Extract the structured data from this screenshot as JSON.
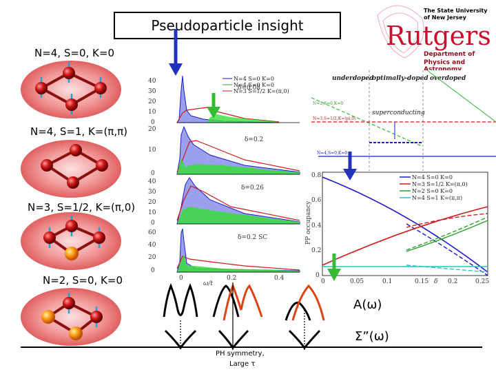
{
  "slide": {
    "title": "Pseudoparticle insight",
    "clusters": [
      {
        "label": "N=4, S=0, K=0"
      },
      {
        "label": "N=4, S=1, K=(π,π)"
      },
      {
        "label": "N=3, S=1/2, K=(π,0)"
      },
      {
        "label": "N=2, S=0, K=0"
      }
    ],
    "bottom_labels": {
      "spectral": "A(ω)",
      "self_energy": "Σ”(ω)",
      "ph_symmetry": "PH symmetry,",
      "large_tau": "Large τ"
    }
  },
  "logo": {
    "university_line1": "The State University",
    "university_line2": "of New Jersey",
    "name": "Rutgers",
    "dept_line1": "Department of",
    "dept_line2": "Physics and Astronomy",
    "brand_color": "#c8102e"
  },
  "spectral_plot": {
    "panels": [
      {
        "label": "δ=0.08",
        "yticks": [
          "40",
          "30",
          "20",
          "10",
          "0"
        ]
      },
      {
        "label": "δ=0.2",
        "yticks": [
          "20",
          "10",
          "0"
        ]
      },
      {
        "label": "δ=0.26",
        "yticks": [
          "40",
          "30",
          "20",
          "10",
          "0"
        ]
      },
      {
        "label": "δ=0.2 SC",
        "yticks": [
          "60",
          "40",
          "20",
          "0"
        ]
      }
    ],
    "legend": [
      {
        "label": "N=4 S=0 K=0",
        "color": "#1a1acc"
      },
      {
        "label": "N=4 S=0 K=0",
        "color": "#2e9e2e"
      },
      {
        "label": "N=3 S=1/2 K=(π,0)",
        "color": "#cc1a1a"
      }
    ],
    "xticks": [
      "0",
      "0.2",
      "0.4"
    ],
    "xlabel": "ω/t"
  },
  "phase_diagram": {
    "regions": [
      "underdoped",
      "optimally-doped",
      "overdoped"
    ],
    "sc_label": "superconducting",
    "line_labels": [
      "N=2,S=0,K=0",
      "N=3,S=1/2,K=(pi,0)",
      "N=4,S=0,K=0"
    ]
  },
  "occupancy_plot": {
    "ylabel": "PP occupancy",
    "xlabel": "δ",
    "xticks": [
      "0",
      "0.05",
      "0.1",
      "0.15",
      "0.2",
      "0.25"
    ],
    "yticks": [
      "0.8",
      "0.6",
      "0.4",
      "0.2",
      "0"
    ],
    "legend": [
      {
        "label": "N=4 S=0   K=0",
        "color": "#1a1acc"
      },
      {
        "label": "N=3 S=1/2  K=(π,0)",
        "color": "#cc1a1a"
      },
      {
        "label": "N=2 S=0   K=0",
        "color": "#2e9e2e"
      },
      {
        "label": "N=4 S=1   K=(π,π)",
        "color": "#1fc7c7"
      }
    ]
  },
  "colors": {
    "arrow_blue": "#2233bb",
    "arrow_green": "#33bb33",
    "curve_orange": "#dd4411"
  }
}
